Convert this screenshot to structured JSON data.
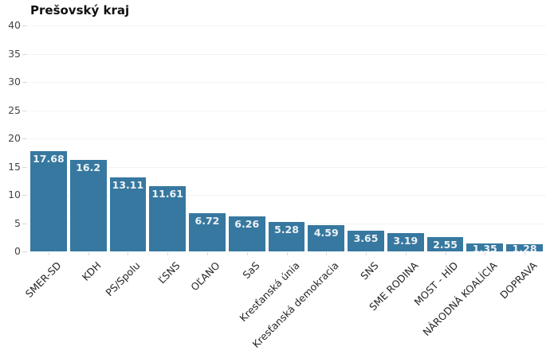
{
  "chart_data": {
    "type": "bar",
    "title": "Prešovský kraj",
    "categories": [
      "SMER-SD",
      "KDH",
      "PS/Spolu",
      "ĽSNS",
      "OĽANO",
      "SaS",
      "Kresťanská únia",
      "Kresťanská demokracia",
      "SNS",
      "SME RODINA",
      "MOST - HÍD",
      "NÁRODNÁ KOALÍCIA",
      "DOPRAVA"
    ],
    "values": [
      17.68,
      16.2,
      13.11,
      11.61,
      6.72,
      6.26,
      5.28,
      4.59,
      3.65,
      3.19,
      2.55,
      1.35,
      1.28
    ],
    "value_labels": [
      "17.68",
      "16.2",
      "13.11",
      "11.61",
      "6.72",
      "6.26",
      "5.28",
      "4.59",
      "3.65",
      "3.19",
      "2.55",
      "1.35",
      "1.28"
    ],
    "xlabel": "",
    "ylabel": "",
    "ylim": [
      0,
      40
    ],
    "yticks": [
      0,
      5,
      10,
      15,
      20,
      25,
      30,
      35,
      40
    ],
    "grid": "faint-horizontal",
    "legend": "none",
    "x_label_rotation_deg": -45,
    "colors": {
      "bar": "#3778a0",
      "bar_value_label": "#edf2f5",
      "y_axis_label": "#454545",
      "x_axis_label": "#262626",
      "title": "#111111",
      "tick_mark": "#d9d9d9",
      "gridline": "#f3f3f3",
      "background": "#ffffff"
    }
  }
}
